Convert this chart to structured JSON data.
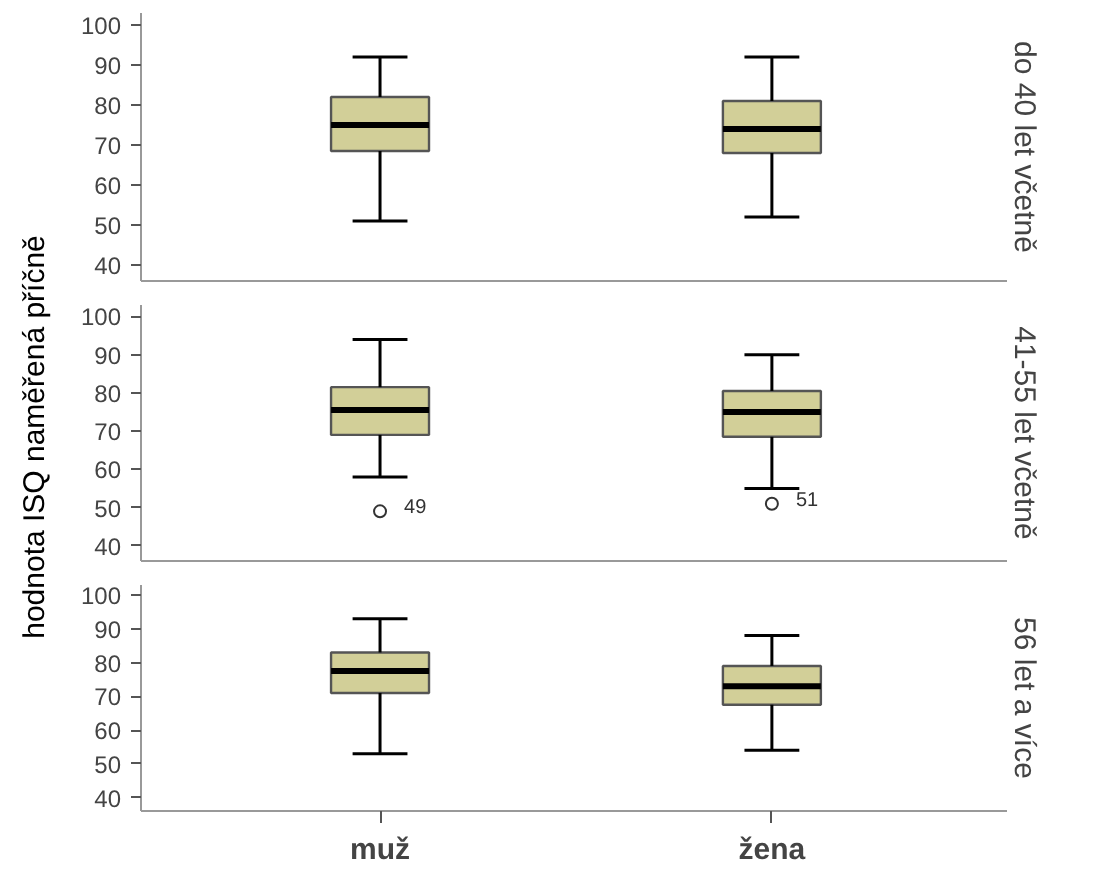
{
  "chart_data": [
    {
      "type": "box",
      "categories": [
        null,
        null
      ],
      "y2label": "do 40 let včetně",
      "ylim": [
        36,
        103
      ],
      "yticks": [
        40,
        50,
        60,
        70,
        80,
        90,
        100
      ],
      "tick_labels": "y",
      "grid": false,
      "color": "#d2cf98",
      "boxes": [
        {
          "low": 51,
          "q1": 68.5,
          "median": 75,
          "q3": 82,
          "high": 92
        },
        {
          "low": 52,
          "q1": 68,
          "median": 74,
          "q3": 81,
          "high": 92
        }
      ]
    },
    {
      "type": "box",
      "categories": [
        null,
        null
      ],
      "ylabel": "hodnota ISQ naměřená příčně",
      "y2label": "41-55 let včetně",
      "ylim": [
        36,
        103
      ],
      "yticks": [
        40,
        50,
        60,
        70,
        80,
        90,
        100
      ],
      "tick_labels": "y",
      "grid": false,
      "color": "#d2cf98",
      "boxes": [
        {
          "low": 58,
          "q1": 69,
          "median": 75.5,
          "q3": 81.5,
          "high": 94,
          "outliers": [
            49
          ]
        },
        {
          "low": 55,
          "q1": 68.5,
          "median": 75,
          "q3": 80.5,
          "high": 90,
          "outliers": [
            51
          ]
        }
      ],
      "annotations": [
        "49",
        "51"
      ]
    },
    {
      "type": "box",
      "categories": [
        "muž",
        "žena"
      ],
      "y2label": "56 let a více",
      "ylim": [
        36,
        103
      ],
      "yticks": [
        40,
        50,
        60,
        70,
        80,
        90,
        100
      ],
      "grid": false,
      "color": "#d2cf98",
      "boxes": [
        {
          "low": 53,
          "q1": 71,
          "median": 77.5,
          "q3": 83,
          "high": 93
        },
        {
          "low": 54,
          "q1": 67.5,
          "median": 73,
          "q3": 79,
          "high": 88
        }
      ]
    }
  ]
}
